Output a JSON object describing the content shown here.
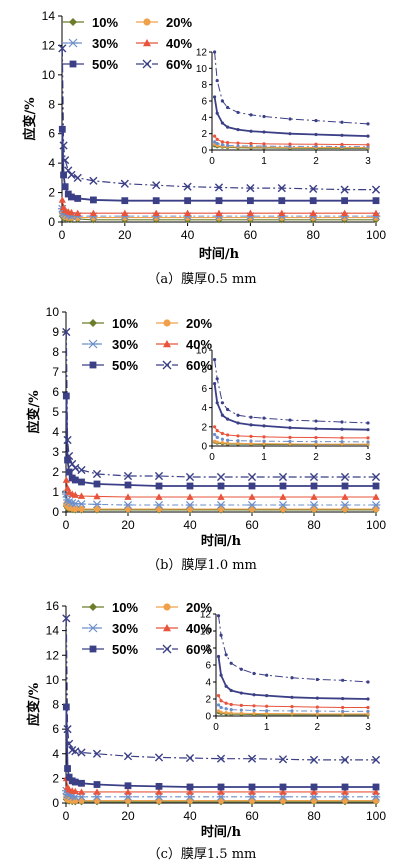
{
  "colors": {
    "p10": "#6b7d2a",
    "p20": "#f0a04b",
    "p30": "#6d8fc9",
    "p40": "#e8533b",
    "p50": "#3b3f86",
    "p60": "#3b3f86",
    "axis": "#000000"
  },
  "chart_data": [
    {
      "type": "line",
      "caption": "（a）膜厚0.5 mm",
      "xlabel": "时间/h",
      "ylabel": "应变/%",
      "xlim": [
        0,
        100
      ],
      "ylim": [
        0,
        14
      ],
      "xticks": [
        "0",
        "20",
        "40",
        "60",
        "80",
        "100"
      ],
      "yticks": [
        "0",
        "2",
        "4",
        "6",
        "8",
        "10",
        "12",
        "14"
      ],
      "legend": [
        "10%",
        "20%",
        "30%",
        "40%",
        "50%",
        "60%"
      ],
      "legend_position": "top-left",
      "grid": false,
      "x": [
        0.1,
        0.5,
        1,
        2,
        3,
        5,
        10,
        20,
        30,
        40,
        50,
        60,
        70,
        80,
        90,
        100
      ],
      "series": [
        {
          "name": "10%",
          "marker": "diamond",
          "values": [
            0.4,
            0.3,
            0.25,
            0.2,
            0.2,
            0.2,
            0.15,
            0.15,
            0.15,
            0.15,
            0.15,
            0.15,
            0.15,
            0.15,
            0.15,
            0.15
          ]
        },
        {
          "name": "20%",
          "marker": "circle",
          "values": [
            0.6,
            0.45,
            0.35,
            0.3,
            0.3,
            0.3,
            0.3,
            0.3,
            0.3,
            0.3,
            0.3,
            0.3,
            0.3,
            0.3,
            0.3,
            0.3
          ]
        },
        {
          "name": "30%",
          "marker": "asterisk",
          "values": [
            0.9,
            0.6,
            0.5,
            0.45,
            0.4,
            0.4,
            0.4,
            0.4,
            0.4,
            0.4,
            0.4,
            0.4,
            0.4,
            0.4,
            0.4,
            0.4
          ]
        },
        {
          "name": "40%",
          "marker": "triangle",
          "values": [
            1.5,
            1.0,
            0.8,
            0.7,
            0.65,
            0.6,
            0.6,
            0.6,
            0.6,
            0.6,
            0.6,
            0.6,
            0.6,
            0.6,
            0.6,
            0.6
          ]
        },
        {
          "name": "50%",
          "marker": "square",
          "values": [
            6.3,
            3.2,
            2.4,
            1.9,
            1.7,
            1.6,
            1.5,
            1.45,
            1.45,
            1.45,
            1.45,
            1.45,
            1.45,
            1.45,
            1.45,
            1.45
          ]
        },
        {
          "name": "60%",
          "marker": "x",
          "values": [
            11.8,
            5.2,
            4.2,
            3.5,
            3.2,
            3.0,
            2.8,
            2.6,
            2.5,
            2.4,
            2.35,
            2.3,
            2.3,
            2.25,
            2.2,
            2.2
          ]
        }
      ],
      "inset": {
        "xlim": [
          0,
          3
        ],
        "ylim": [
          0,
          12
        ],
        "xticks": [
          "0",
          "1",
          "2",
          "3"
        ],
        "yticks": [
          "0",
          "2",
          "4",
          "6",
          "8",
          "10",
          "12"
        ],
        "x": [
          0.05,
          0.1,
          0.2,
          0.3,
          0.5,
          0.75,
          1,
          1.5,
          2,
          2.5,
          3
        ],
        "series": [
          {
            "name": "10%",
            "values": [
              0.5,
              0.4,
              0.35,
              0.3,
              0.28,
              0.25,
              0.25,
              0.22,
              0.2,
              0.2,
              0.2
            ]
          },
          {
            "name": "20%",
            "values": [
              0.7,
              0.55,
              0.45,
              0.4,
              0.38,
              0.35,
              0.35,
              0.32,
              0.3,
              0.3,
              0.3
            ]
          },
          {
            "name": "30%",
            "values": [
              1.0,
              0.8,
              0.65,
              0.55,
              0.5,
              0.5,
              0.48,
              0.45,
              0.45,
              0.42,
              0.4
            ]
          },
          {
            "name": "40%",
            "values": [
              1.7,
              1.3,
              1.0,
              0.9,
              0.85,
              0.8,
              0.75,
              0.72,
              0.7,
              0.68,
              0.65
            ]
          },
          {
            "name": "50%",
            "values": [
              6.5,
              4.5,
              3.3,
              2.8,
              2.5,
              2.3,
              2.2,
              2.0,
              1.9,
              1.8,
              1.7
            ]
          },
          {
            "name": "60%",
            "values": [
              12.0,
              8.5,
              6.0,
              5.2,
              4.6,
              4.3,
              4.1,
              3.8,
              3.6,
              3.4,
              3.2
            ]
          }
        ]
      }
    },
    {
      "type": "line",
      "caption": "（b）膜厚1.0 mm",
      "xlabel": "时间/h",
      "ylabel": "应变/%",
      "xlim": [
        0,
        100
      ],
      "ylim": [
        0,
        10
      ],
      "xticks": [
        "0",
        "20",
        "40",
        "60",
        "80",
        "100"
      ],
      "yticks": [
        "0",
        "1",
        "2",
        "3",
        "4",
        "5",
        "6",
        "7",
        "8",
        "9",
        "10"
      ],
      "legend": [
        "10%",
        "20%",
        "30%",
        "40%",
        "50%",
        "60%"
      ],
      "legend_position": "top-left",
      "grid": false,
      "x": [
        0.1,
        0.5,
        1,
        2,
        3,
        5,
        10,
        20,
        30,
        40,
        50,
        60,
        70,
        80,
        90,
        100
      ],
      "series": [
        {
          "name": "10%",
          "marker": "diamond",
          "values": [
            0.3,
            0.2,
            0.15,
            0.12,
            0.1,
            0.1,
            0.1,
            0.1,
            0.1,
            0.1,
            0.1,
            0.1,
            0.1,
            0.1,
            0.1,
            0.1
          ]
        },
        {
          "name": "20%",
          "marker": "circle",
          "values": [
            0.4,
            0.3,
            0.22,
            0.18,
            0.15,
            0.15,
            0.15,
            0.15,
            0.15,
            0.15,
            0.15,
            0.15,
            0.15,
            0.15,
            0.15,
            0.15
          ]
        },
        {
          "name": "30%",
          "marker": "asterisk",
          "values": [
            0.9,
            0.6,
            0.5,
            0.45,
            0.42,
            0.4,
            0.38,
            0.35,
            0.35,
            0.35,
            0.35,
            0.35,
            0.35,
            0.35,
            0.35,
            0.35
          ]
        },
        {
          "name": "40%",
          "marker": "triangle",
          "values": [
            1.6,
            1.2,
            1.0,
            0.9,
            0.85,
            0.8,
            0.78,
            0.75,
            0.75,
            0.75,
            0.75,
            0.75,
            0.75,
            0.75,
            0.75,
            0.75
          ]
        },
        {
          "name": "50%",
          "marker": "square",
          "values": [
            5.8,
            2.6,
            2.0,
            1.7,
            1.6,
            1.5,
            1.4,
            1.35,
            1.3,
            1.3,
            1.3,
            1.3,
            1.3,
            1.3,
            1.3,
            1.3
          ]
        },
        {
          "name": "60%",
          "marker": "x",
          "values": [
            9.0,
            3.6,
            2.8,
            2.4,
            2.2,
            2.1,
            1.9,
            1.8,
            1.8,
            1.75,
            1.75,
            1.75,
            1.75,
            1.75,
            1.75,
            1.75
          ]
        }
      ],
      "inset": {
        "xlim": [
          0,
          3
        ],
        "ylim": [
          0,
          10
        ],
        "xticks": [
          "0",
          "1",
          "2",
          "3"
        ],
        "yticks": [
          "0",
          "2",
          "4",
          "6",
          "8",
          "10"
        ],
        "x": [
          0.05,
          0.1,
          0.2,
          0.3,
          0.5,
          0.75,
          1,
          1.5,
          2,
          2.5,
          3
        ],
        "series": [
          {
            "name": "10%",
            "values": [
              0.4,
              0.3,
              0.25,
              0.2,
              0.2,
              0.18,
              0.15,
              0.15,
              0.15,
              0.15,
              0.15
            ]
          },
          {
            "name": "20%",
            "values": [
              0.5,
              0.4,
              0.35,
              0.3,
              0.28,
              0.25,
              0.25,
              0.22,
              0.2,
              0.2,
              0.2
            ]
          },
          {
            "name": "30%",
            "values": [
              1.2,
              0.9,
              0.7,
              0.6,
              0.55,
              0.52,
              0.5,
              0.48,
              0.45,
              0.45,
              0.42
            ]
          },
          {
            "name": "40%",
            "values": [
              2.0,
              1.6,
              1.3,
              1.15,
              1.05,
              1.0,
              0.95,
              0.9,
              0.88,
              0.85,
              0.85
            ]
          },
          {
            "name": "50%",
            "values": [
              6.5,
              4.5,
              3.2,
              2.8,
              2.4,
              2.2,
              2.1,
              1.9,
              1.8,
              1.75,
              1.7
            ]
          },
          {
            "name": "60%",
            "values": [
              9.0,
              7.0,
              4.5,
              3.8,
              3.2,
              3.0,
              2.9,
              2.7,
              2.6,
              2.5,
              2.4
            ]
          }
        ]
      }
    },
    {
      "type": "line",
      "caption": "（c）膜厚1.5 mm",
      "xlabel": "时间/h",
      "ylabel": "应变/%",
      "xlim": [
        0,
        100
      ],
      "ylim": [
        0,
        16
      ],
      "xticks": [
        "0",
        "20",
        "40",
        "60",
        "80",
        "100"
      ],
      "yticks": [
        "0",
        "2",
        "4",
        "6",
        "8",
        "10",
        "12",
        "14",
        "16"
      ],
      "legend": [
        "10%",
        "20%",
        "30%",
        "40%",
        "50%",
        "60%"
      ],
      "legend_position": "top-left",
      "grid": false,
      "x": [
        0.1,
        0.5,
        1,
        2,
        3,
        5,
        10,
        20,
        30,
        40,
        50,
        60,
        70,
        80,
        90,
        100
      ],
      "series": [
        {
          "name": "10%",
          "marker": "diamond",
          "values": [
            0.3,
            0.2,
            0.15,
            0.12,
            0.1,
            0.1,
            0.1,
            0.1,
            0.1,
            0.1,
            0.1,
            0.1,
            0.1,
            0.1,
            0.1,
            0.1
          ]
        },
        {
          "name": "20%",
          "marker": "circle",
          "values": [
            0.5,
            0.3,
            0.25,
            0.2,
            0.2,
            0.2,
            0.2,
            0.2,
            0.2,
            0.2,
            0.2,
            0.2,
            0.2,
            0.2,
            0.2,
            0.2
          ]
        },
        {
          "name": "30%",
          "marker": "asterisk",
          "values": [
            1.0,
            0.7,
            0.6,
            0.55,
            0.5,
            0.5,
            0.5,
            0.5,
            0.5,
            0.5,
            0.5,
            0.5,
            0.5,
            0.5,
            0.5,
            0.5
          ]
        },
        {
          "name": "40%",
          "marker": "triangle",
          "values": [
            2.0,
            1.3,
            1.1,
            1.0,
            0.95,
            0.9,
            0.9,
            0.9,
            0.9,
            0.9,
            0.9,
            0.9,
            0.9,
            0.9,
            0.9,
            0.9
          ]
        },
        {
          "name": "50%",
          "marker": "square",
          "values": [
            7.8,
            2.8,
            2.1,
            1.8,
            1.7,
            1.6,
            1.5,
            1.4,
            1.35,
            1.3,
            1.3,
            1.3,
            1.3,
            1.3,
            1.3,
            1.3
          ]
        },
        {
          "name": "60%",
          "marker": "x",
          "values": [
            15.0,
            6.0,
            4.8,
            4.3,
            4.2,
            4.1,
            4.0,
            3.8,
            3.7,
            3.65,
            3.6,
            3.6,
            3.55,
            3.5,
            3.5,
            3.5
          ]
        }
      ],
      "inset": {
        "xlim": [
          0,
          3
        ],
        "ylim": [
          0,
          12
        ],
        "xticks": [
          "0",
          "1",
          "2",
          "3"
        ],
        "yticks": [
          "0",
          "2",
          "4",
          "6",
          "8",
          "10",
          "12"
        ],
        "x": [
          0.05,
          0.1,
          0.2,
          0.3,
          0.5,
          0.75,
          1,
          1.5,
          2,
          2.5,
          3
        ],
        "series": [
          {
            "name": "10%",
            "values": [
              0.4,
              0.3,
              0.25,
              0.2,
              0.2,
              0.18,
              0.15,
              0.15,
              0.15,
              0.15,
              0.15
            ]
          },
          {
            "name": "20%",
            "values": [
              0.6,
              0.45,
              0.4,
              0.35,
              0.32,
              0.3,
              0.3,
              0.28,
              0.25,
              0.25,
              0.25
            ]
          },
          {
            "name": "30%",
            "values": [
              1.3,
              1.0,
              0.85,
              0.75,
              0.7,
              0.65,
              0.62,
              0.6,
              0.58,
              0.55,
              0.55
            ]
          },
          {
            "name": "40%",
            "values": [
              2.4,
              1.8,
              1.5,
              1.35,
              1.25,
              1.2,
              1.15,
              1.1,
              1.05,
              1.0,
              1.0
            ]
          },
          {
            "name": "50%",
            "values": [
              7.0,
              4.8,
              3.5,
              3.0,
              2.7,
              2.5,
              2.4,
              2.2,
              2.1,
              2.05,
              2.0
            ]
          },
          {
            "name": "60%",
            "values": [
              11.8,
              9.5,
              7.2,
              6.2,
              5.5,
              5.0,
              4.8,
              4.5,
              4.3,
              4.2,
              4.0
            ]
          }
        ]
      }
    }
  ]
}
